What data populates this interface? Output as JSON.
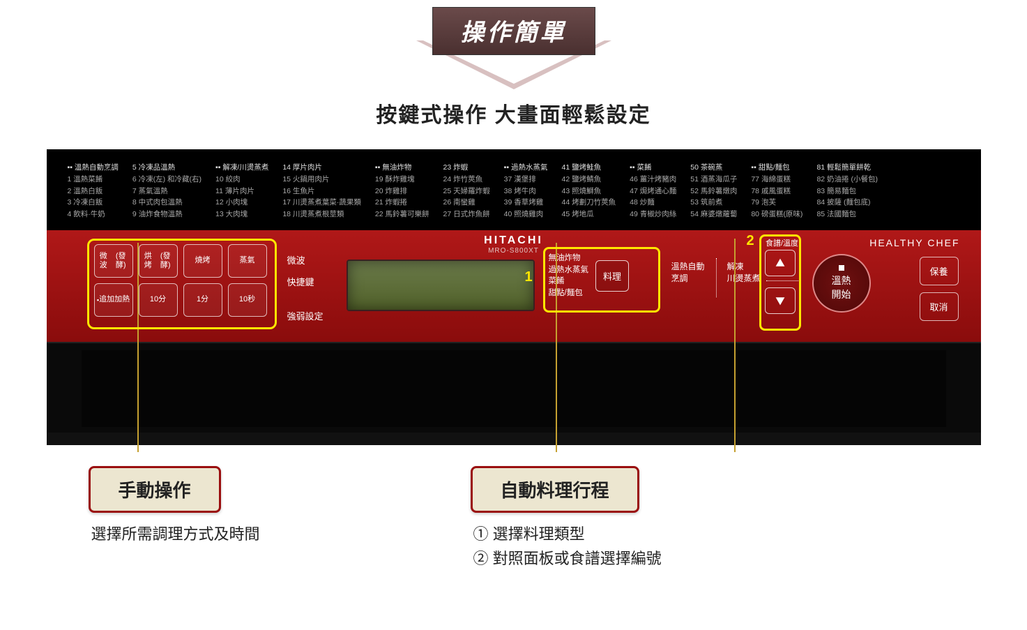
{
  "banner": {
    "title": "操作簡單"
  },
  "subtitle": "按鍵式操作 大畫面輕鬆設定",
  "brand": {
    "name": "HITACHI",
    "model": "MRO-S800XT",
    "right": "HEALTHY CHEF"
  },
  "menu": {
    "groups": [
      {
        "header": "▪▪ 溫熱自動烹調",
        "items": [
          "1 溫熱菜餚",
          "2 溫熱白飯",
          "3 冷凍白飯",
          "4 飲料·牛奶"
        ]
      },
      {
        "header": "5 冷凍品溫熱",
        "items": [
          "6 冷凍(左) 和冷藏(右)",
          "7 蒸氣溫熱",
          "8 中式肉包溫熱",
          "9 油炸食物溫熱"
        ]
      },
      {
        "header": "▪▪ 解凍/川燙蒸煮",
        "items": [
          "10 絞肉",
          "11 薄片肉片",
          "12 小肉塊",
          "13 大肉塊"
        ]
      },
      {
        "header": "14 厚片肉片",
        "items": [
          "15 火鍋用肉片",
          "16 生魚片",
          "17 川燙蒸煮葉菜·蔬果類",
          "18 川燙蒸煮根莖類"
        ]
      },
      {
        "header": "▪▪ 無油炸物",
        "items": [
          "19 酥炸雞塊",
          "20 炸雞排",
          "21 炸蝦捲",
          "22 馬鈴薯可樂餅"
        ]
      },
      {
        "header": "23 炸蝦",
        "items": [
          "24 炸竹莢魚",
          "25 天婦羅炸蝦",
          "26 南蠻雞",
          "27 日式炸魚餅"
        ]
      },
      {
        "header": "▪▪ 過熱水蒸氣",
        "items": [
          "37 漢堡排",
          "38 烤牛肉",
          "39 香草烤雞",
          "40 照燒雞肉"
        ]
      },
      {
        "header": "41 鹽烤鮭魚",
        "items": [
          "42 鹽烤鯖魚",
          "43 照燒鰤魚",
          "44 烤劃刀竹莢魚",
          "45 烤地瓜"
        ]
      },
      {
        "header": "▪▪ 菜餚",
        "items": [
          "46 薑汁烤豬肉",
          "47 焗烤通心麵",
          "48 炒麵",
          "49 青椒炒肉絲"
        ]
      },
      {
        "header": "50 茶碗蒸",
        "items": [
          "51 酒蒸海瓜子",
          "52 馬鈴薯燉肉",
          "53 筑前煮",
          "54 麻婆燉蘿蔔"
        ]
      },
      {
        "header": "▪▪ 甜點/麵包",
        "items": [
          "77 海綿蛋糕",
          "78 戚風蛋糕",
          "79 泡芙",
          "80 磅蛋糕(原味)"
        ]
      },
      {
        "header": "81 輕鬆簡單餅乾",
        "items": [
          "82 奶油捲 (小餐包)",
          "83 簡易麵包",
          "84 披薩 (麵包底)",
          "85 法國麵包"
        ]
      }
    ]
  },
  "manual_buttons": {
    "row1": [
      "微波\n(發酵)",
      "烘烤\n(發酵)",
      "燒烤",
      "蒸氣"
    ],
    "row2": [
      "追加加熱",
      "10分",
      "1分",
      "10秒"
    ]
  },
  "side_labels": {
    "top": "微波\n快捷鍵",
    "bottom": "強弱設定"
  },
  "dish": {
    "lines": [
      "無油炸物",
      "過熱水蒸氣",
      "菜餚",
      "甜點/麵包"
    ],
    "button": "料理"
  },
  "mid": {
    "c1": "溫熱自動\n烹調",
    "c2": "解凍\n川燙蒸煮"
  },
  "arrows": {
    "label": "食譜/溫度"
  },
  "round": "溫熱\n開始",
  "right_buttons": [
    "保養",
    "取消"
  ],
  "callouts": {
    "left": {
      "title": "手動操作",
      "desc": "選擇所需調理方式及時間"
    },
    "right": {
      "title": "自動料理行程",
      "step1": "① 選擇料理類型",
      "step2": "② 對照面板或食譜選擇編號"
    }
  },
  "numbers": {
    "one": "1",
    "two": "2"
  },
  "colors": {
    "highlight": "#ffe600",
    "panel_red": "#a01010",
    "callout_border": "#9a0f10",
    "callout_bg": "#ece6d0"
  }
}
